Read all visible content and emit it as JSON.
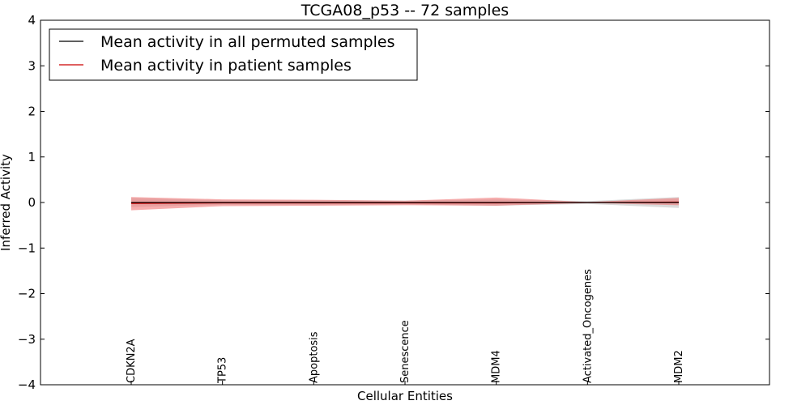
{
  "chart_data": {
    "type": "line",
    "title": "TCGA08_p53 -- 72 samples",
    "xlabel": "Cellular Entities",
    "ylabel": "Inferred Activity",
    "ylim": [
      -4,
      4
    ],
    "yticks": [
      -4,
      -3,
      -2,
      -1,
      0,
      1,
      2,
      3,
      4
    ],
    "ytick_labels": [
      "−4",
      "−3",
      "−2",
      "−1",
      "0",
      "1",
      "2",
      "3",
      "4"
    ],
    "categories": [
      "CDKN2A",
      "TP53",
      "Apoptosis",
      "Senescence",
      "MDM4",
      "Activated_Oncogenes",
      "MDM2"
    ],
    "legend_position": "top-left",
    "series": [
      {
        "name": "Mean activity in all permuted samples",
        "color": "#000000",
        "values": [
          0.0,
          0.0,
          0.0,
          0.0,
          0.0,
          0.0,
          0.0
        ],
        "band_lower": [
          -0.1,
          -0.05,
          -0.05,
          -0.04,
          -0.07,
          -0.03,
          -0.12
        ],
        "band_upper": [
          0.1,
          0.05,
          0.05,
          0.04,
          0.07,
          0.03,
          0.12
        ],
        "band_color": "#cccccc"
      },
      {
        "name": "Mean activity in patient samples",
        "color": "#cc0000",
        "values": [
          -0.02,
          -0.01,
          -0.01,
          -0.01,
          -0.01,
          0.0,
          0.01
        ],
        "band_lower": [
          -0.17,
          -0.08,
          -0.07,
          -0.06,
          -0.07,
          -0.01,
          -0.06
        ],
        "band_upper": [
          0.12,
          0.07,
          0.06,
          0.04,
          0.11,
          0.01,
          0.1
        ],
        "band_color": "#f07878"
      }
    ]
  }
}
